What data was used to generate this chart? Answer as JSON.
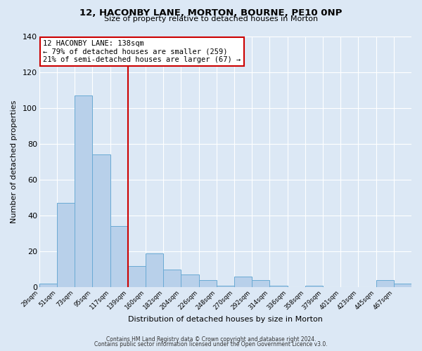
{
  "title": "12, HACONBY LANE, MORTON, BOURNE, PE10 0NP",
  "subtitle": "Size of property relative to detached houses in Morton",
  "xlabel": "Distribution of detached houses by size in Morton",
  "ylabel": "Number of detached properties",
  "bin_labels": [
    "29sqm",
    "51sqm",
    "73sqm",
    "95sqm",
    "117sqm",
    "139sqm",
    "160sqm",
    "182sqm",
    "204sqm",
    "226sqm",
    "248sqm",
    "270sqm",
    "292sqm",
    "314sqm",
    "336sqm",
    "358sqm",
    "379sqm",
    "401sqm",
    "423sqm",
    "445sqm",
    "467sqm"
  ],
  "bar_values": [
    2,
    47,
    107,
    74,
    34,
    12,
    19,
    10,
    7,
    4,
    1,
    6,
    4,
    1,
    0,
    1,
    0,
    0,
    0,
    4,
    2
  ],
  "bar_color": "#b8d0ea",
  "bar_edge_color": "#6aaad4",
  "fig_bg_color": "#dce8f5",
  "plot_bg_color": "#dce8f5",
  "grid_color": "#ffffff",
  "vline_x_index": 5,
  "vline_color": "#cc0000",
  "annotation_box_text": "12 HACONBY LANE: 138sqm\n← 79% of detached houses are smaller (259)\n21% of semi-detached houses are larger (67) →",
  "annotation_box_color": "#cc0000",
  "ylim": [
    0,
    140
  ],
  "yticks": [
    0,
    20,
    40,
    60,
    80,
    100,
    120,
    140
  ],
  "footer1": "Contains HM Land Registry data © Crown copyright and database right 2024.",
  "footer2": "Contains public sector information licensed under the Open Government Licence v3.0."
}
